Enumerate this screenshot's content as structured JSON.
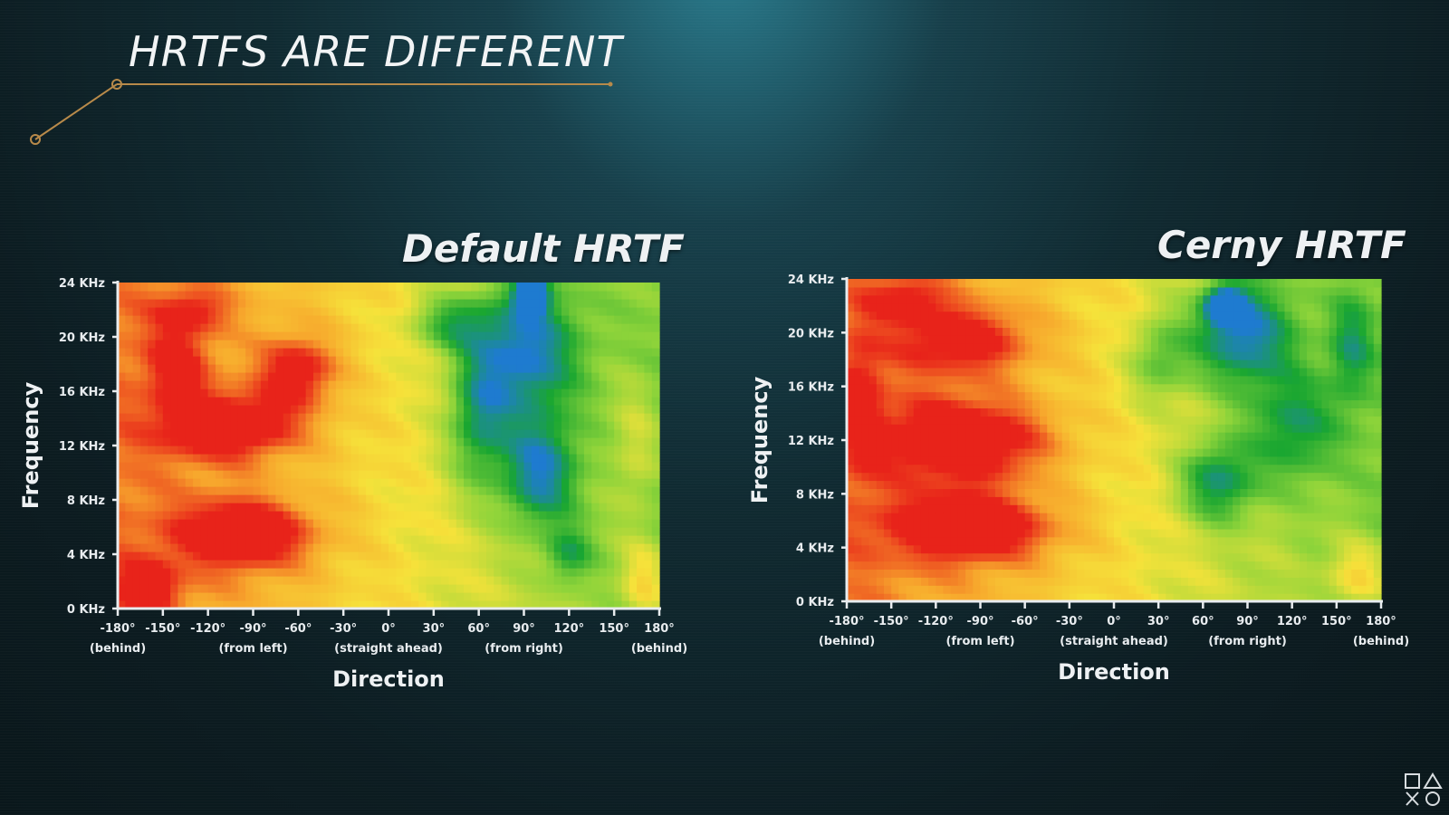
{
  "slide": {
    "title": "HRTFS ARE DIFFERENT",
    "accent_color": "#b88a4a"
  },
  "colorscale": [
    "#1e7bd0",
    "#19a631",
    "#8fd43a",
    "#f6e23a",
    "#f7a52c",
    "#e8231a"
  ],
  "chart_data": [
    {
      "type": "heatmap",
      "title": "Default HRTF",
      "xlabel": "Direction",
      "ylabel": "Frequency",
      "x_ticks": [
        "-180°",
        "-150°",
        "-120°",
        "-90°",
        "-60°",
        "-30°",
        "0°",
        "30°",
        "60°",
        "90°",
        "120°",
        "150°",
        "180°"
      ],
      "x_tick_values": [
        -180,
        -150,
        -120,
        -90,
        -60,
        -30,
        0,
        30,
        60,
        90,
        120,
        150,
        180
      ],
      "x_sublabels": [
        {
          "at": -180,
          "text": "(behind)"
        },
        {
          "at": -90,
          "text": "(from left)"
        },
        {
          "at": 0,
          "text": "(straight ahead)"
        },
        {
          "at": 90,
          "text": "(from right)"
        },
        {
          "at": 180,
          "text": "(behind)"
        }
      ],
      "y_ticks": [
        "0 KHz",
        "4 KHz",
        "8 KHz",
        "12 KHz",
        "16 KHz",
        "20 KHz",
        "24 KHz"
      ],
      "y_tick_values": [
        0,
        4,
        8,
        12,
        16,
        20,
        24
      ],
      "xlim": [
        -180,
        180
      ],
      "ylim": [
        0,
        24
      ],
      "x_unit": "degrees",
      "y_unit": "KHz",
      "hot_regions": [
        {
          "x": -105,
          "y": 13.5,
          "sx": 45,
          "sy": 2.3,
          "v": 1.0
        },
        {
          "x": -95,
          "y": 5.5,
          "sx": 45,
          "sy": 2.5,
          "v": 1.0
        },
        {
          "x": -60,
          "y": 17.5,
          "sx": 25,
          "sy": 2.5,
          "v": 0.85
        },
        {
          "x": -140,
          "y": 18,
          "sx": 20,
          "sy": 3,
          "v": 0.6
        },
        {
          "x": -130,
          "y": 22,
          "sx": 25,
          "sy": 1.5,
          "v": 0.5
        },
        {
          "x": -160,
          "y": 1.5,
          "sx": 20,
          "sy": 2,
          "v": 0.7
        },
        {
          "x": 170,
          "y": 2,
          "sx": 15,
          "sy": 3,
          "v": 0.55
        },
        {
          "x": 165,
          "y": 12,
          "sx": 15,
          "sy": 5,
          "v": 0.3
        }
      ],
      "cool_regions": [
        {
          "x": 90,
          "y": 19,
          "sx": 35,
          "sy": 5,
          "v": 1.0
        },
        {
          "x": 100,
          "y": 10,
          "sx": 25,
          "sy": 4,
          "v": 0.9
        },
        {
          "x": 60,
          "y": 14,
          "sx": 20,
          "sy": 5,
          "v": 0.7
        },
        {
          "x": 95,
          "y": 23,
          "sx": 10,
          "sy": 1.2,
          "v": 1.35
        },
        {
          "x": 120,
          "y": 4,
          "sx": 15,
          "sy": 2,
          "v": 0.5
        },
        {
          "x": 40,
          "y": 21,
          "sx": 25,
          "sy": 2,
          "v": 0.6
        }
      ]
    },
    {
      "type": "heatmap",
      "title": "Cerny HRTF",
      "xlabel": "Direction",
      "ylabel": "Frequency",
      "x_ticks": [
        "-180°",
        "-150°",
        "-120°",
        "-90°",
        "-60°",
        "-30°",
        "0°",
        "30°",
        "60°",
        "90°",
        "120°",
        "150°",
        "180°"
      ],
      "x_tick_values": [
        -180,
        -150,
        -120,
        -90,
        -60,
        -30,
        0,
        30,
        60,
        90,
        120,
        150,
        180
      ],
      "x_sublabels": [
        {
          "at": -180,
          "text": "(behind)"
        },
        {
          "at": -90,
          "text": "(from left)"
        },
        {
          "at": 0,
          "text": "(straight ahead)"
        },
        {
          "at": 90,
          "text": "(from right)"
        },
        {
          "at": 180,
          "text": "(behind)"
        }
      ],
      "y_ticks": [
        "0 KHz",
        "4 KHz",
        "8 KHz",
        "12 KHz",
        "16 KHz",
        "20 KHz",
        "24 KHz"
      ],
      "y_tick_values": [
        0,
        4,
        8,
        12,
        16,
        20,
        24
      ],
      "xlim": [
        -180,
        180
      ],
      "ylim": [
        0,
        24
      ],
      "x_unit": "degrees",
      "y_unit": "KHz",
      "hot_regions": [
        {
          "x": -100,
          "y": 12,
          "sx": 55,
          "sy": 3,
          "v": 1.0
        },
        {
          "x": -95,
          "y": 5.5,
          "sx": 55,
          "sy": 2.5,
          "v": 1.0
        },
        {
          "x": -100,
          "y": 19.5,
          "sx": 45,
          "sy": 2.5,
          "v": 0.75
        },
        {
          "x": -140,
          "y": 22.5,
          "sx": 25,
          "sy": 1.5,
          "v": 0.55
        },
        {
          "x": -170,
          "y": 15,
          "sx": 15,
          "sy": 5,
          "v": 0.4
        },
        {
          "x": 165,
          "y": 2,
          "sx": 20,
          "sy": 2.5,
          "v": 0.55
        }
      ],
      "cool_regions": [
        {
          "x": 85,
          "y": 20,
          "sx": 35,
          "sy": 4,
          "v": 1.0
        },
        {
          "x": 70,
          "y": 9,
          "sx": 25,
          "sy": 3,
          "v": 0.8
        },
        {
          "x": 120,
          "y": 13,
          "sx": 30,
          "sy": 4,
          "v": 0.6
        },
        {
          "x": 75,
          "y": 22,
          "sx": 12,
          "sy": 1.2,
          "v": 1.3
        },
        {
          "x": 160,
          "y": 19,
          "sx": 15,
          "sy": 4,
          "v": 0.5
        },
        {
          "x": 30,
          "y": 18,
          "sx": 20,
          "sy": 3,
          "v": 0.5
        }
      ]
    }
  ]
}
